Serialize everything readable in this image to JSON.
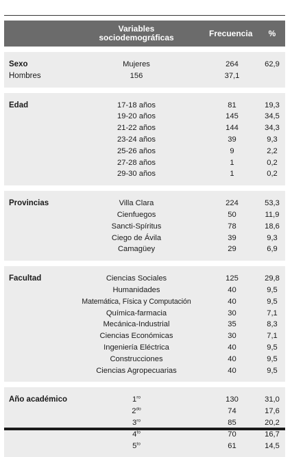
{
  "header": {
    "variables_line1": "Variables",
    "variables_line2": "sociodemográficas",
    "frecuencia": "Frecuencia",
    "porcentaje": "%"
  },
  "sexo": {
    "category": "Sexo",
    "rows": [
      {
        "label": "Mujeres",
        "freq": "264",
        "pct": "62,9"
      },
      {
        "label": "Hombres",
        "freq": "156",
        "pct": "37,1"
      }
    ]
  },
  "edad": {
    "category": "Edad",
    "rows": [
      {
        "label": "17-18 años",
        "freq": "81",
        "pct": "19,3"
      },
      {
        "label": "19-20 años",
        "freq": "145",
        "pct": "34,5"
      },
      {
        "label": "21-22 años",
        "freq": "144",
        "pct": "34,3"
      },
      {
        "label": "23-24 años",
        "freq": "39",
        "pct": "9,3"
      },
      {
        "label": "25-26 años",
        "freq": "9",
        "pct": "2,2"
      },
      {
        "label": "27-28 años",
        "freq": "1",
        "pct": "0,2"
      },
      {
        "label": "29-30 años",
        "freq": "1",
        "pct": "0,2"
      }
    ]
  },
  "provincias": {
    "category": "Provincias",
    "rows": [
      {
        "label": "Villa Clara",
        "freq": "224",
        "pct": "53,3"
      },
      {
        "label": "Cienfuegos",
        "freq": "50",
        "pct": "11,9"
      },
      {
        "label": "Sancti-Spíritus",
        "freq": "78",
        "pct": "18,6"
      },
      {
        "label": "Ciego de Ávila",
        "freq": "39",
        "pct": "9,3"
      },
      {
        "label": "Camagüey",
        "freq": "29",
        "pct": "6,9"
      }
    ]
  },
  "facultad": {
    "category": "Facultad",
    "rows": [
      {
        "label": "Ciencias Sociales",
        "freq": "125",
        "pct": "29,8"
      },
      {
        "label": "Humanidades",
        "freq": "40",
        "pct": "9,5"
      },
      {
        "label": "Matemática, Física y Computación",
        "freq": "40",
        "pct": "9,5"
      },
      {
        "label": "Química-farmacia",
        "freq": "30",
        "pct": "7,1"
      },
      {
        "label": "Mecánica-Industrial",
        "freq": "35",
        "pct": "8,3"
      },
      {
        "label": "Ciencias Económicas",
        "freq": "30",
        "pct": "7,1"
      },
      {
        "label": "Ingeniería Eléctrica",
        "freq": "40",
        "pct": "9,5"
      },
      {
        "label": "Construcciones",
        "freq": "40",
        "pct": "9,5"
      },
      {
        "label": "Ciencias Agropecuarias",
        "freq": "40",
        "pct": "9,5"
      }
    ]
  },
  "anio": {
    "category": "Año académico",
    "rows": [
      {
        "num": "1",
        "sup": "ro",
        "freq": "130",
        "pct": "31,0"
      },
      {
        "num": "2",
        "sup": "do",
        "freq": "74",
        "pct": "17,6"
      },
      {
        "num": "3",
        "sup": "ro",
        "freq": "85",
        "pct": "20,2"
      },
      {
        "num": "4",
        "sup": "to",
        "freq": "70",
        "pct": "16,7"
      },
      {
        "num": "5",
        "sup": "to",
        "freq": "61",
        "pct": "14,5"
      }
    ]
  }
}
